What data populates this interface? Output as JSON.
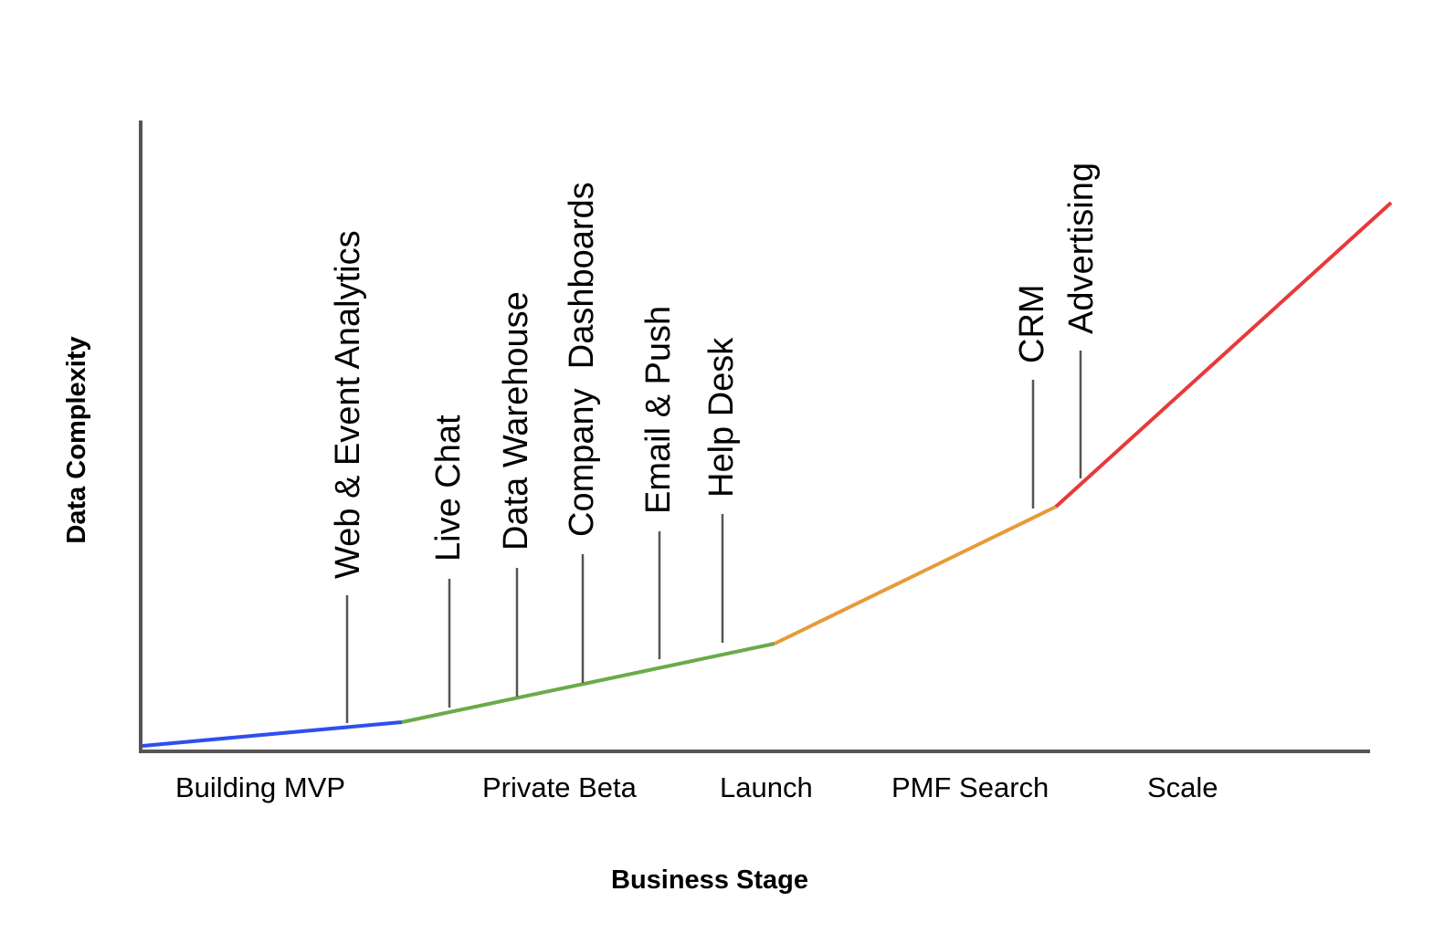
{
  "x_axis": {
    "title": "Business Stage"
  },
  "y_axis": {
    "title": "Data Complexity"
  },
  "stages": [
    "Building MVP",
    "Private Beta",
    "Launch",
    "PMF Search",
    "Scale"
  ],
  "tools": [
    "Web & Event Analytics",
    "Live Chat",
    "Data Warehouse",
    "Company  Dashboards",
    "Email & Push",
    "Help Desk",
    "CRM",
    "Advertising"
  ],
  "segment_colors": [
    "#2f4ef0",
    "#6aab48",
    "#e69b3a",
    "#e8393a"
  ],
  "axis_color": "#555555",
  "marker_color": "#555555"
}
